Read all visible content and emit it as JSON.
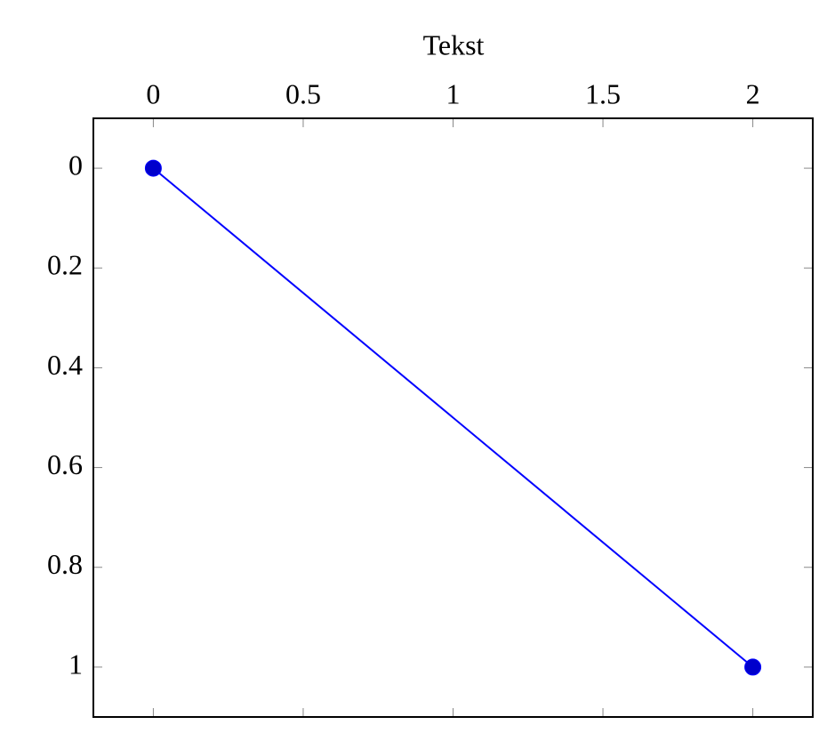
{
  "chart_data": {
    "type": "line",
    "xlabel": "Tekst",
    "xaxis_position": "top",
    "y_reversed": true,
    "x": [
      0,
      2
    ],
    "series": [
      {
        "values": [
          0,
          1
        ],
        "color": "#0000ff",
        "marker": "circle",
        "marker_color": "#0000cc"
      }
    ],
    "xlim": [
      -0.2,
      2.2
    ],
    "xticks": [
      0,
      0.5,
      1,
      1.5,
      2
    ],
    "ylim": [
      -0.1,
      1.1
    ],
    "yticks": [
      0,
      0.2,
      0.4,
      0.6,
      0.8,
      1
    ]
  }
}
